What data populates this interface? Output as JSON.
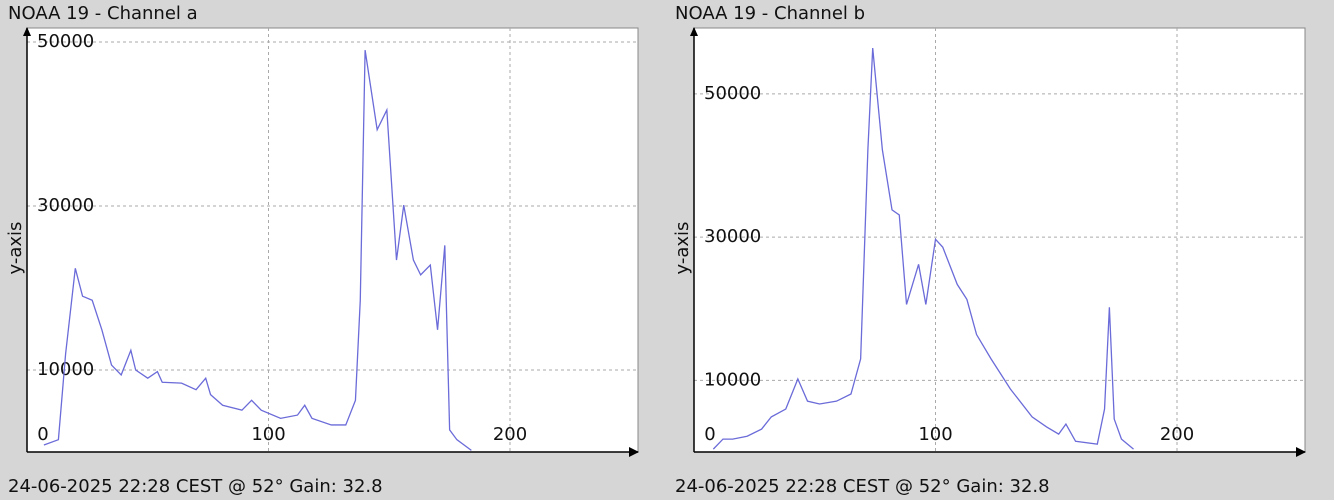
{
  "chart_data": [
    {
      "type": "line",
      "title": "NOAA 19 - Channel a",
      "footer": "24-06-2025 22:28 CEST @ 52° Gain: 32.8",
      "y_label": "y-axis",
      "xlim": [
        0,
        253
      ],
      "ylim": [
        0,
        51700
      ],
      "xticks": [
        0,
        100,
        200
      ],
      "yticks": [
        10000,
        30000,
        50000
      ],
      "grid": true,
      "series": [
        {
          "name": "Channel a",
          "color": "#6b6bd9",
          "x": [
            7,
            13,
            16,
            20,
            23,
            27,
            31,
            35,
            39,
            43,
            45,
            50,
            54,
            56,
            64,
            70,
            74,
            76,
            81,
            89,
            93,
            97,
            105,
            112,
            115,
            118,
            126,
            132,
            136,
            138,
            140,
            145,
            149,
            153,
            156,
            160,
            163,
            167,
            170,
            173,
            175,
            178,
            184
          ],
          "values": [
            850,
            1500,
            12000,
            22400,
            19000,
            18500,
            14900,
            10600,
            9400,
            12400,
            10000,
            9000,
            9800,
            8500,
            8400,
            7600,
            9000,
            7000,
            5700,
            5100,
            6300,
            5100,
            4100,
            4500,
            5700,
            4100,
            3300,
            3300,
            6300,
            18500,
            49000,
            39300,
            41700,
            23400,
            30100,
            23400,
            21600,
            22800,
            14900,
            25200,
            2700,
            1500,
            200
          ]
        }
      ]
    },
    {
      "type": "line",
      "title": "NOAA 19 - Channel b",
      "footer": "24-06-2025 22:28 CEST @ 52° Gain: 32.8",
      "y_label": "y-axis",
      "xlim": [
        0,
        253
      ],
      "ylim": [
        0,
        59200
      ],
      "xticks": [
        0,
        100,
        200
      ],
      "yticks": [
        10000,
        30000,
        50000
      ],
      "grid": true,
      "series": [
        {
          "name": "Channel b",
          "color": "#6b6bd9",
          "x": [
            8,
            12,
            16,
            22,
            28,
            32,
            38,
            43,
            47,
            52,
            59,
            65,
            69,
            72,
            74,
            78,
            82,
            85,
            88,
            93,
            96,
            100,
            103,
            109,
            113,
            117,
            123,
            131,
            140,
            146,
            151,
            154,
            158,
            167,
            170,
            172,
            174,
            177,
            182
          ],
          "values": [
            400,
            1800,
            1800,
            2200,
            3200,
            4900,
            6000,
            10200,
            7100,
            6700,
            7100,
            8100,
            13000,
            42200,
            56400,
            42200,
            33800,
            33100,
            20600,
            26200,
            20600,
            29700,
            28600,
            23400,
            21300,
            16400,
            13000,
            8800,
            4900,
            3500,
            2500,
            3900,
            1500,
            1100,
            6000,
            20200,
            4600,
            1800,
            400
          ]
        }
      ]
    }
  ]
}
